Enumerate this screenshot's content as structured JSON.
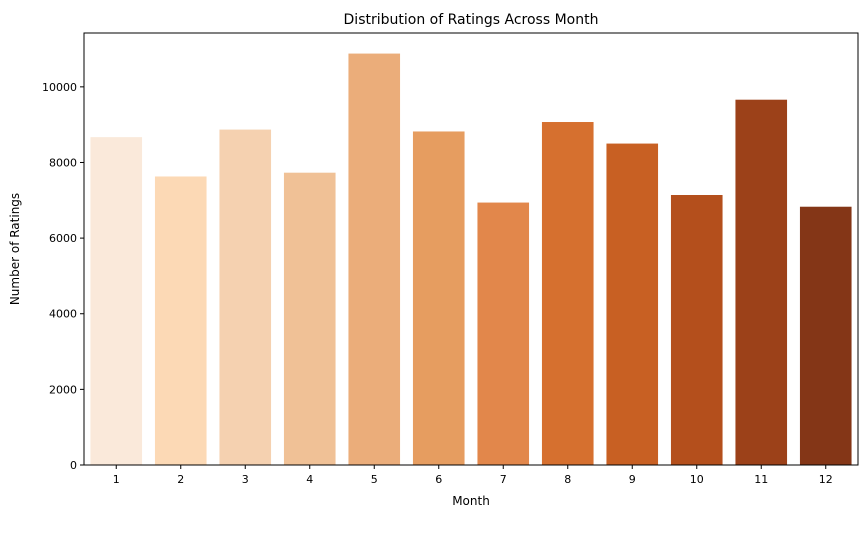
{
  "chart_data": {
    "type": "bar",
    "title": "Distribution of Ratings Across Month",
    "xlabel": "Month",
    "ylabel": "Number of Ratings",
    "categories": [
      "1",
      "2",
      "3",
      "4",
      "5",
      "6",
      "7",
      "8",
      "9",
      "10",
      "11",
      "12"
    ],
    "values": [
      8670,
      7630,
      8870,
      7730,
      10880,
      8820,
      6940,
      9070,
      8500,
      7140,
      9660,
      6830
    ],
    "ylim": [
      0,
      11424
    ],
    "yticks": [
      0,
      2000,
      4000,
      6000,
      8000,
      10000
    ],
    "ytick_labels": [
      "0",
      "2000",
      "4000",
      "6000",
      "8000",
      "10000"
    ],
    "grid": false,
    "legend": "none",
    "colors": [
      "#fae9da",
      "#fcd9b5",
      "#f5d1b0",
      "#f0c196",
      "#ebad7a",
      "#e69d60",
      "#e2874b",
      "#d6702f",
      "#c86023",
      "#b44f1c",
      "#9c4119",
      "#843617"
    ]
  }
}
